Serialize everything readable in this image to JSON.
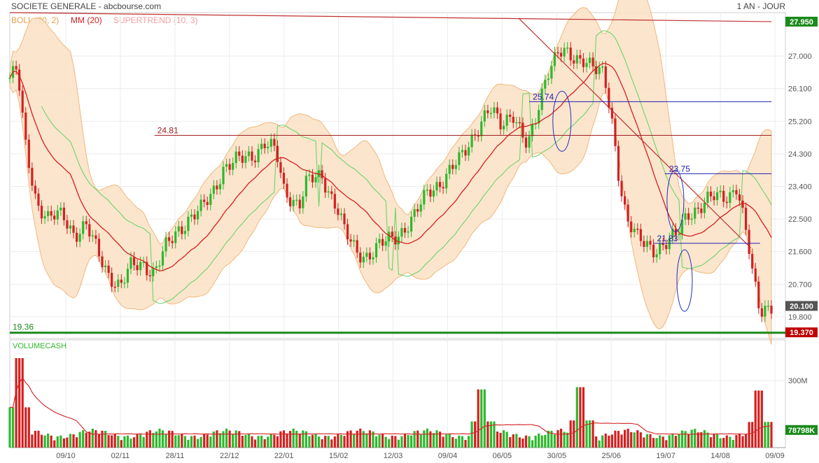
{
  "header": {
    "title": "SOCIETE GENERALE - abcbourse.com",
    "period": "1 AN - JOUR"
  },
  "legend": [
    {
      "label": "BOLL (20, 2)",
      "color": "#e8a04c"
    },
    {
      "label": "MM (20)",
      "color": "#d42020"
    },
    {
      "label": "SUPERTREND (10, 3)",
      "color": "#f0a0a0"
    }
  ],
  "volume_label": "VOLUMECASH",
  "colors": {
    "up": "#2eb82e",
    "down": "#d42020",
    "boll_fill": "#fbe3c8",
    "boll_line": "#f0b070",
    "mm": "#d42020",
    "supertrend_bull": "#5fd35f",
    "supertrend_bear": "#f0a0a0",
    "support": "#1a8a1a"
  },
  "chart_data": {
    "type": "candlestick",
    "price_axis": {
      "ylim": [
        19.2,
        28.2
      ],
      "ticks": [
        {
          "label": "27.000",
          "v": 27.0
        },
        {
          "label": "26.100",
          "v": 26.1
        },
        {
          "label": "25.200",
          "v": 25.2
        },
        {
          "label": "24.300",
          "v": 24.3
        },
        {
          "label": "23.400",
          "v": 23.4
        },
        {
          "label": "22.500",
          "v": 22.5
        },
        {
          "label": "21.600",
          "v": 21.6
        },
        {
          "label": "20.700",
          "v": 20.7
        },
        {
          "label": "19.800",
          "v": 19.8
        }
      ]
    },
    "price_badges": [
      {
        "label": "27.950",
        "v": 27.95,
        "color": "#1a8a1a"
      },
      {
        "label": "20.100",
        "v": 20.1,
        "color": "#555555"
      },
      {
        "label": "19.370",
        "v": 19.37,
        "color": "#c00000"
      }
    ],
    "x_axis": {
      "labels": [
        "09/10",
        "02/11",
        "28/11",
        "22/12",
        "22/01",
        "15/02",
        "12/03",
        "09/04",
        "06/05",
        "30/05",
        "25/06",
        "19/07",
        "14/08",
        "09/09"
      ]
    },
    "annotations": [
      {
        "label": "24.81",
        "v": 24.81
      },
      {
        "label": "25.74",
        "v": 25.74
      },
      {
        "label": "23.75",
        "v": 23.75
      },
      {
        "label": "21.83",
        "v": 21.83
      },
      {
        "label": "19.36",
        "v": 19.36
      }
    ],
    "trendlines": [
      {
        "name": "resistance-long",
        "from": [
          0,
          28.2
        ],
        "to": [
          1,
          27.95
        ]
      },
      {
        "name": "downtrend",
        "from": [
          0.668,
          28.05
        ],
        "to": [
          0.973,
          21.7
        ]
      }
    ],
    "price_path": [
      [
        0,
        26.4
      ],
      [
        0.01,
        26.6
      ],
      [
        0.02,
        24.6
      ],
      [
        0.035,
        23.0
      ],
      [
        0.05,
        22.5
      ],
      [
        0.07,
        22.6
      ],
      [
        0.085,
        22.1
      ],
      [
        0.1,
        22.3
      ],
      [
        0.115,
        21.6
      ],
      [
        0.13,
        21.0
      ],
      [
        0.145,
        20.6
      ],
      [
        0.16,
        21.2
      ],
      [
        0.175,
        21.3
      ],
      [
        0.19,
        21.0
      ],
      [
        0.205,
        21.7
      ],
      [
        0.22,
        22.2
      ],
      [
        0.235,
        22.5
      ],
      [
        0.25,
        22.7
      ],
      [
        0.265,
        23.2
      ],
      [
        0.28,
        23.9
      ],
      [
        0.3,
        24.1
      ],
      [
        0.32,
        24.3
      ],
      [
        0.335,
        24.6
      ],
      [
        0.35,
        24.3
      ],
      [
        0.36,
        23.3
      ],
      [
        0.38,
        22.9
      ],
      [
        0.39,
        23.5
      ],
      [
        0.41,
        23.7
      ],
      [
        0.43,
        22.8
      ],
      [
        0.44,
        22.1
      ],
      [
        0.455,
        21.6
      ],
      [
        0.47,
        21.5
      ],
      [
        0.49,
        21.8
      ],
      [
        0.51,
        22.1
      ],
      [
        0.53,
        22.5
      ],
      [
        0.55,
        23.3
      ],
      [
        0.57,
        23.6
      ],
      [
        0.59,
        24.1
      ],
      [
        0.61,
        24.9
      ],
      [
        0.63,
        25.5
      ],
      [
        0.645,
        25.1
      ],
      [
        0.66,
        25.5
      ],
      [
        0.68,
        24.4
      ],
      [
        0.69,
        25.2
      ],
      [
        0.705,
        26.6
      ],
      [
        0.72,
        27.1
      ],
      [
        0.74,
        26.9
      ],
      [
        0.755,
        27.0
      ],
      [
        0.77,
        26.6
      ],
      [
        0.78,
        26.4
      ],
      [
        0.79,
        25.3
      ],
      [
        0.8,
        23.7
      ],
      [
        0.81,
        22.5
      ],
      [
        0.825,
        21.9
      ],
      [
        0.845,
        21.7
      ],
      [
        0.86,
        21.8
      ],
      [
        0.875,
        22.0
      ],
      [
        0.89,
        22.7
      ],
      [
        0.905,
        22.8
      ],
      [
        0.925,
        23.1
      ],
      [
        0.945,
        23.2
      ],
      [
        0.955,
        23.4
      ],
      [
        0.96,
        22.8
      ],
      [
        0.97,
        21.7
      ],
      [
        0.975,
        21.0
      ],
      [
        0.985,
        20.0
      ],
      [
        0.99,
        20.1
      ]
    ],
    "volume_axis": {
      "ticks": [
        {
          "label": "300M",
          "v": 300
        }
      ],
      "max": 450
    },
    "volume_badge": {
      "label": "78798K",
      "v": 78.798
    },
    "volume_spikes": [
      {
        "x": 0.012,
        "v": 400
      },
      {
        "x": 0.62,
        "v": 260
      },
      {
        "x": 0.75,
        "v": 270
      },
      {
        "x": 0.985,
        "v": 255
      }
    ]
  }
}
